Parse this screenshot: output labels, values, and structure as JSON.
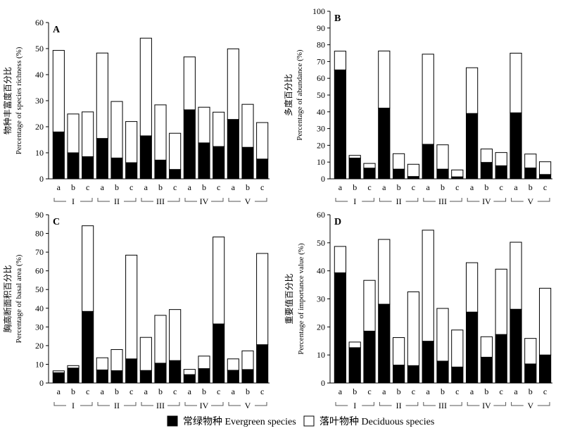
{
  "legend": {
    "position": "bottom-center",
    "items": [
      {
        "label": "常绿物种 Evergreen species",
        "color": "#000000"
      },
      {
        "label": "落叶物种 Deciduous species",
        "color": "#ffffff"
      }
    ]
  },
  "chart_data": [
    {
      "type": "bar",
      "stacked": true,
      "panel_label": "A",
      "ylabel_cn": "物种丰富度百分比",
      "ylabel_en": "Percentage of species richness (%)",
      "ylim": [
        0,
        60
      ],
      "yticks": [
        0,
        10,
        20,
        30,
        40,
        50,
        60
      ],
      "categories": [
        "a",
        "b",
        "c",
        "a",
        "b",
        "c",
        "a",
        "b",
        "c",
        "a",
        "b",
        "c",
        "a",
        "b",
        "c"
      ],
      "groups": [
        "I",
        "II",
        "III",
        "IV",
        "V"
      ],
      "series": [
        {
          "name": "常绿物种 Evergreen species",
          "color": "#000000",
          "values": [
            18,
            10,
            8.5,
            15.5,
            8,
            6.2,
            16.5,
            7.2,
            3.6,
            26.5,
            13.8,
            12.4,
            22.8,
            12.1,
            7.6
          ]
        },
        {
          "name": "落叶物种 Deciduous species",
          "color": "#ffffff",
          "values": [
            31.3,
            14.9,
            17.2,
            32.8,
            21.7,
            15.8,
            37.5,
            21.2,
            13.9,
            20.3,
            13.7,
            13.2,
            27.1,
            16.5,
            14
          ]
        }
      ],
      "totals": [
        49.3,
        24.9,
        25.7,
        48.3,
        29.7,
        22,
        54,
        28.4,
        17.5,
        46.8,
        27.5,
        25.6,
        49.9,
        28.6,
        21.6
      ]
    },
    {
      "type": "bar",
      "stacked": true,
      "panel_label": "B",
      "ylabel_cn": "多度百分比",
      "ylabel_en": "Percentage of abundance (%)",
      "ylim": [
        0,
        100
      ],
      "yticks": [
        0,
        10,
        20,
        30,
        40,
        50,
        60,
        70,
        80,
        90,
        100
      ],
      "categories": [
        "a",
        "b",
        "c",
        "a",
        "b",
        "c",
        "a",
        "b",
        "c",
        "a",
        "b",
        "c",
        "a",
        "b",
        "c"
      ],
      "groups": [
        "I",
        "II",
        "III",
        "IV",
        "V"
      ],
      "series": [
        {
          "name": "常绿物种 Evergreen species",
          "color": "#000000",
          "values": [
            65,
            12.4,
            6.4,
            42.2,
            5.8,
            1.4,
            20.6,
            5.8,
            1.2,
            39,
            9.8,
            7.8,
            39.4,
            6.5,
            2.6
          ]
        },
        {
          "name": "落叶物种 Deciduous species",
          "color": "#ffffff",
          "values": [
            11.2,
            1.6,
            2.8,
            34.1,
            9.2,
            7.3,
            53.8,
            14.5,
            4.1,
            27.3,
            8,
            7.9,
            35.6,
            8.3,
            7.6
          ]
        }
      ],
      "totals": [
        76.2,
        14,
        9.2,
        76.3,
        15,
        8.7,
        74.4,
        20.3,
        5.3,
        66.3,
        17.8,
        15.7,
        75,
        14.8,
        10.2
      ]
    },
    {
      "type": "bar",
      "stacked": true,
      "panel_label": "C",
      "ylabel_cn": "胸高断面积百分比",
      "ylabel_en": "Percentage of basal area (%)",
      "ylim": [
        0,
        90
      ],
      "yticks": [
        0,
        10,
        20,
        30,
        40,
        50,
        60,
        70,
        80,
        90
      ],
      "categories": [
        "a",
        "b",
        "c",
        "a",
        "b",
        "c",
        "a",
        "b",
        "c",
        "a",
        "b",
        "c",
        "a",
        "b",
        "c"
      ],
      "groups": [
        "I",
        "II",
        "III",
        "IV",
        "V"
      ],
      "series": [
        {
          "name": "常绿物种 Evergreen species",
          "color": "#000000",
          "values": [
            5.5,
            8,
            38.3,
            7,
            6.6,
            12.9,
            6.7,
            10.6,
            12,
            4.5,
            7.7,
            31.6,
            6.8,
            7.2,
            20.5
          ]
        },
        {
          "name": "落叶物种 Deciduous species",
          "color": "#ffffff",
          "values": [
            1,
            1.3,
            45.8,
            6.5,
            11.3,
            55.5,
            17.7,
            25.6,
            27.3,
            2.8,
            6.7,
            46.5,
            6.1,
            10,
            48.8
          ]
        }
      ],
      "totals": [
        6.5,
        9.3,
        84.1,
        13.5,
        17.9,
        68.4,
        24.4,
        36.2,
        39.3,
        7.3,
        14.4,
        78.1,
        12.9,
        17.2,
        69.3
      ]
    },
    {
      "type": "bar",
      "stacked": true,
      "panel_label": "D",
      "ylabel_cn": "重要值百分比",
      "ylabel_en": "Percentage of importance value (%)",
      "ylim": [
        0,
        60
      ],
      "yticks": [
        0,
        10,
        20,
        30,
        40,
        50,
        60
      ],
      "categories": [
        "a",
        "b",
        "c",
        "a",
        "b",
        "c",
        "a",
        "b",
        "c",
        "a",
        "b",
        "c",
        "a",
        "b",
        "c"
      ],
      "groups": [
        "I",
        "II",
        "III",
        "IV",
        "V"
      ],
      "series": [
        {
          "name": "常绿物种 Evergreen species",
          "color": "#000000",
          "values": [
            39.3,
            12.6,
            18.5,
            28.1,
            6.4,
            6.2,
            14.9,
            7.8,
            5.7,
            25.3,
            9.2,
            17.3,
            26.3,
            6.8,
            10
          ]
        },
        {
          "name": "落叶物种 Deciduous species",
          "color": "#ffffff",
          "values": [
            9.4,
            2,
            18.1,
            23.1,
            9.8,
            26.3,
            39.6,
            18.8,
            13.2,
            17.6,
            7.3,
            23.3,
            23.9,
            9.1,
            23.8
          ]
        }
      ],
      "totals": [
        48.7,
        14.6,
        36.6,
        51.2,
        16.2,
        32.5,
        54.5,
        26.6,
        18.9,
        42.9,
        16.5,
        40.6,
        50.2,
        15.9,
        33.8
      ]
    }
  ]
}
